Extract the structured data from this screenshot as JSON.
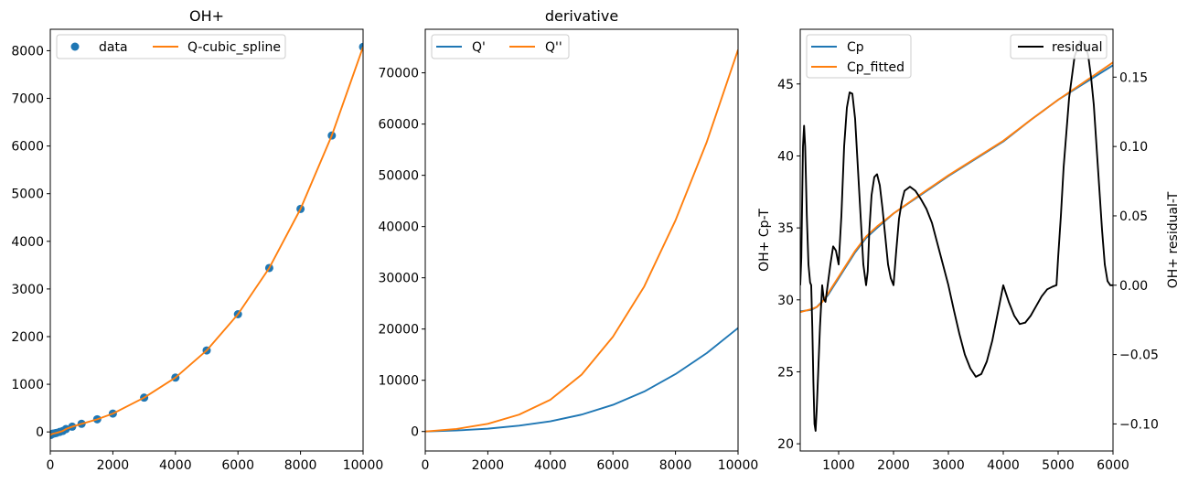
{
  "chart_data": [
    {
      "type": "scatter+line",
      "title": "OH+",
      "xlabel": "",
      "ylabel": "",
      "xlim": [
        0,
        10000
      ],
      "ylim": [
        -400,
        8450
      ],
      "xticks": [
        "0",
        "2000",
        "4000",
        "6000",
        "8000",
        "10000"
      ],
      "yticks": [
        "0",
        "1000",
        "2000",
        "3000",
        "4000",
        "5000",
        "6000",
        "7000",
        "8000"
      ],
      "legend": {
        "placement": "top-left",
        "entries": [
          "data",
          "Q-cubic_spline"
        ]
      },
      "series": [
        {
          "name": "data",
          "kind": "scatter",
          "color": "#1f77b4",
          "x": [
            10,
            20,
            50,
            70,
            100,
            150,
            200,
            300,
            400,
            500,
            700,
            1000,
            1500,
            2000,
            3000,
            4000,
            5000,
            6000,
            7000,
            8000,
            9000,
            10000
          ],
          "y": [
            -65,
            -55,
            -45,
            -40,
            -35,
            -28,
            -20,
            0,
            20,
            60,
            110,
            170,
            265,
            385,
            720,
            1140,
            1710,
            2470,
            3440,
            4680,
            6220,
            8080
          ]
        },
        {
          "name": "Q-cubic_spline",
          "kind": "line",
          "color": "#ff7f0e",
          "x": [
            0,
            10,
            50,
            100,
            200,
            300,
            400,
            500,
            700,
            1000,
            1500,
            2000,
            3000,
            4000,
            5000,
            6000,
            7000,
            8000,
            9000,
            10000
          ],
          "y": [
            -70,
            -65,
            -45,
            -35,
            -20,
            0,
            20,
            60,
            110,
            170,
            265,
            385,
            720,
            1140,
            1710,
            2470,
            3440,
            4680,
            6220,
            8080
          ]
        }
      ]
    },
    {
      "type": "line",
      "title": "derivative",
      "xlabel": "",
      "ylabel": "",
      "xlim": [
        0,
        10000
      ],
      "ylim": [
        -3800,
        78500
      ],
      "xticks": [
        "0",
        "2000",
        "4000",
        "6000",
        "8000",
        "10000"
      ],
      "yticks": [
        "0",
        "10000",
        "20000",
        "30000",
        "40000",
        "50000",
        "60000",
        "70000"
      ],
      "legend": {
        "placement": "top-left",
        "entries": [
          "Q'",
          "Q''"
        ]
      },
      "series": [
        {
          "name": "Q'",
          "color": "#1f77b4",
          "x": [
            0,
            1000,
            2000,
            3000,
            4000,
            5000,
            6000,
            7000,
            8000,
            9000,
            10000
          ],
          "y": [
            0,
            200,
            550,
            1150,
            2000,
            3300,
            5200,
            7800,
            11200,
            15300,
            20200
          ]
        },
        {
          "name": "Q''",
          "color": "#ff7f0e",
          "x": [
            0,
            1000,
            2000,
            3000,
            4000,
            5000,
            6000,
            7000,
            8000,
            9000,
            10000
          ],
          "y": [
            0,
            500,
            1500,
            3300,
            6200,
            11100,
            18500,
            28300,
            41200,
            56500,
            74500
          ]
        }
      ]
    },
    {
      "type": "line",
      "title": "",
      "xlabel": "",
      "ylabel": "OH+ Cp-T",
      "ylabel_right": "OH+ residual-T",
      "xlim": [
        300,
        6000
      ],
      "ylim": [
        19.5,
        48.8
      ],
      "ylim_right": [
        -0.1195,
        0.1845
      ],
      "xticks": [
        "1000",
        "2000",
        "3000",
        "4000",
        "5000",
        "6000"
      ],
      "yticks": [
        "20",
        "25",
        "30",
        "35",
        "40",
        "45"
      ],
      "yticks_right": [
        "−0.10",
        "−0.05",
        "0.00",
        "0.05",
        "0.10",
        "0.15"
      ],
      "legend": {
        "placement": "top-left",
        "entries": [
          "Cp",
          "Cp_fitted"
        ]
      },
      "legend_right": {
        "placement": "top-right",
        "entries": [
          "residual"
        ]
      },
      "series": [
        {
          "name": "Cp",
          "axis": "left",
          "color": "#1f77b4",
          "x": [
            300,
            400,
            500,
            600,
            700,
            800,
            900,
            1000,
            1100,
            1200,
            1300,
            1400,
            1500,
            1700,
            2000,
            2500,
            3000,
            3500,
            4000,
            4500,
            5000,
            5500,
            6000
          ],
          "y": [
            29.2,
            29.25,
            29.3,
            29.5,
            29.9,
            30.3,
            30.9,
            31.5,
            32.1,
            32.7,
            33.3,
            33.8,
            34.3,
            35.0,
            36.0,
            37.3,
            38.6,
            39.8,
            41.0,
            42.5,
            43.9,
            45.1,
            46.3
          ]
        },
        {
          "name": "Cp_fitted",
          "axis": "left",
          "color": "#ff7f0e",
          "x": [
            300,
            400,
            500,
            600,
            700,
            800,
            900,
            1000,
            1100,
            1200,
            1300,
            1400,
            1500,
            1700,
            2000,
            2500,
            3000,
            3500,
            4000,
            4500,
            5000,
            5500,
            6000
          ],
          "y": [
            29.15,
            29.25,
            29.35,
            29.5,
            29.85,
            30.4,
            31.0,
            31.6,
            32.2,
            32.8,
            33.4,
            33.9,
            34.4,
            35.1,
            36.0,
            37.35,
            38.65,
            39.85,
            41.05,
            42.5,
            43.9,
            45.2,
            46.5
          ]
        },
        {
          "name": "residual",
          "axis": "right",
          "color": "#000000",
          "x": [
            300,
            320,
            350,
            370,
            390,
            420,
            450,
            480,
            500,
            520,
            540,
            560,
            580,
            600,
            630,
            660,
            700,
            730,
            760,
            800,
            850,
            900,
            950,
            1000,
            1050,
            1100,
            1150,
            1200,
            1250,
            1300,
            1350,
            1400,
            1450,
            1500,
            1530,
            1560,
            1600,
            1650,
            1700,
            1750,
            1800,
            1850,
            1900,
            1950,
            2000,
            2050,
            2100,
            2150,
            2200,
            2300,
            2400,
            2500,
            2600,
            2700,
            2800,
            2900,
            3000,
            3100,
            3200,
            3300,
            3400,
            3500,
            3600,
            3700,
            3800,
            3900,
            4000,
            4100,
            4200,
            4300,
            4400,
            4500,
            4600,
            4700,
            4800,
            4900,
            4970,
            5000,
            5050,
            5100,
            5200,
            5300,
            5400,
            5500,
            5550,
            5600,
            5650,
            5700,
            5750,
            5800,
            5850,
            5900,
            5950,
            5980,
            6000
          ],
          "y": [
            0.0,
            0.02,
            0.1,
            0.115,
            0.1,
            0.05,
            0.015,
            0.002,
            0.0,
            -0.03,
            -0.07,
            -0.1,
            -0.105,
            -0.09,
            -0.06,
            -0.03,
            0.0,
            -0.01,
            -0.012,
            0.0,
            0.015,
            0.028,
            0.025,
            0.015,
            0.05,
            0.1,
            0.128,
            0.139,
            0.138,
            0.12,
            0.085,
            0.05,
            0.015,
            0.0,
            0.01,
            0.04,
            0.065,
            0.078,
            0.08,
            0.072,
            0.055,
            0.035,
            0.015,
            0.005,
            0.0,
            0.025,
            0.048,
            0.06,
            0.068,
            0.071,
            0.068,
            0.062,
            0.055,
            0.045,
            0.03,
            0.015,
            0.0,
            -0.018,
            -0.035,
            -0.05,
            -0.06,
            -0.066,
            -0.064,
            -0.055,
            -0.04,
            -0.02,
            0.0,
            -0.012,
            -0.022,
            -0.028,
            -0.027,
            -0.022,
            -0.015,
            -0.008,
            -0.003,
            -0.001,
            0.0,
            0.02,
            0.05,
            0.085,
            0.135,
            0.165,
            0.176,
            0.173,
            0.165,
            0.15,
            0.13,
            0.1,
            0.07,
            0.04,
            0.015,
            0.003,
            0.0,
            0.0,
            0.0
          ]
        }
      ]
    }
  ]
}
